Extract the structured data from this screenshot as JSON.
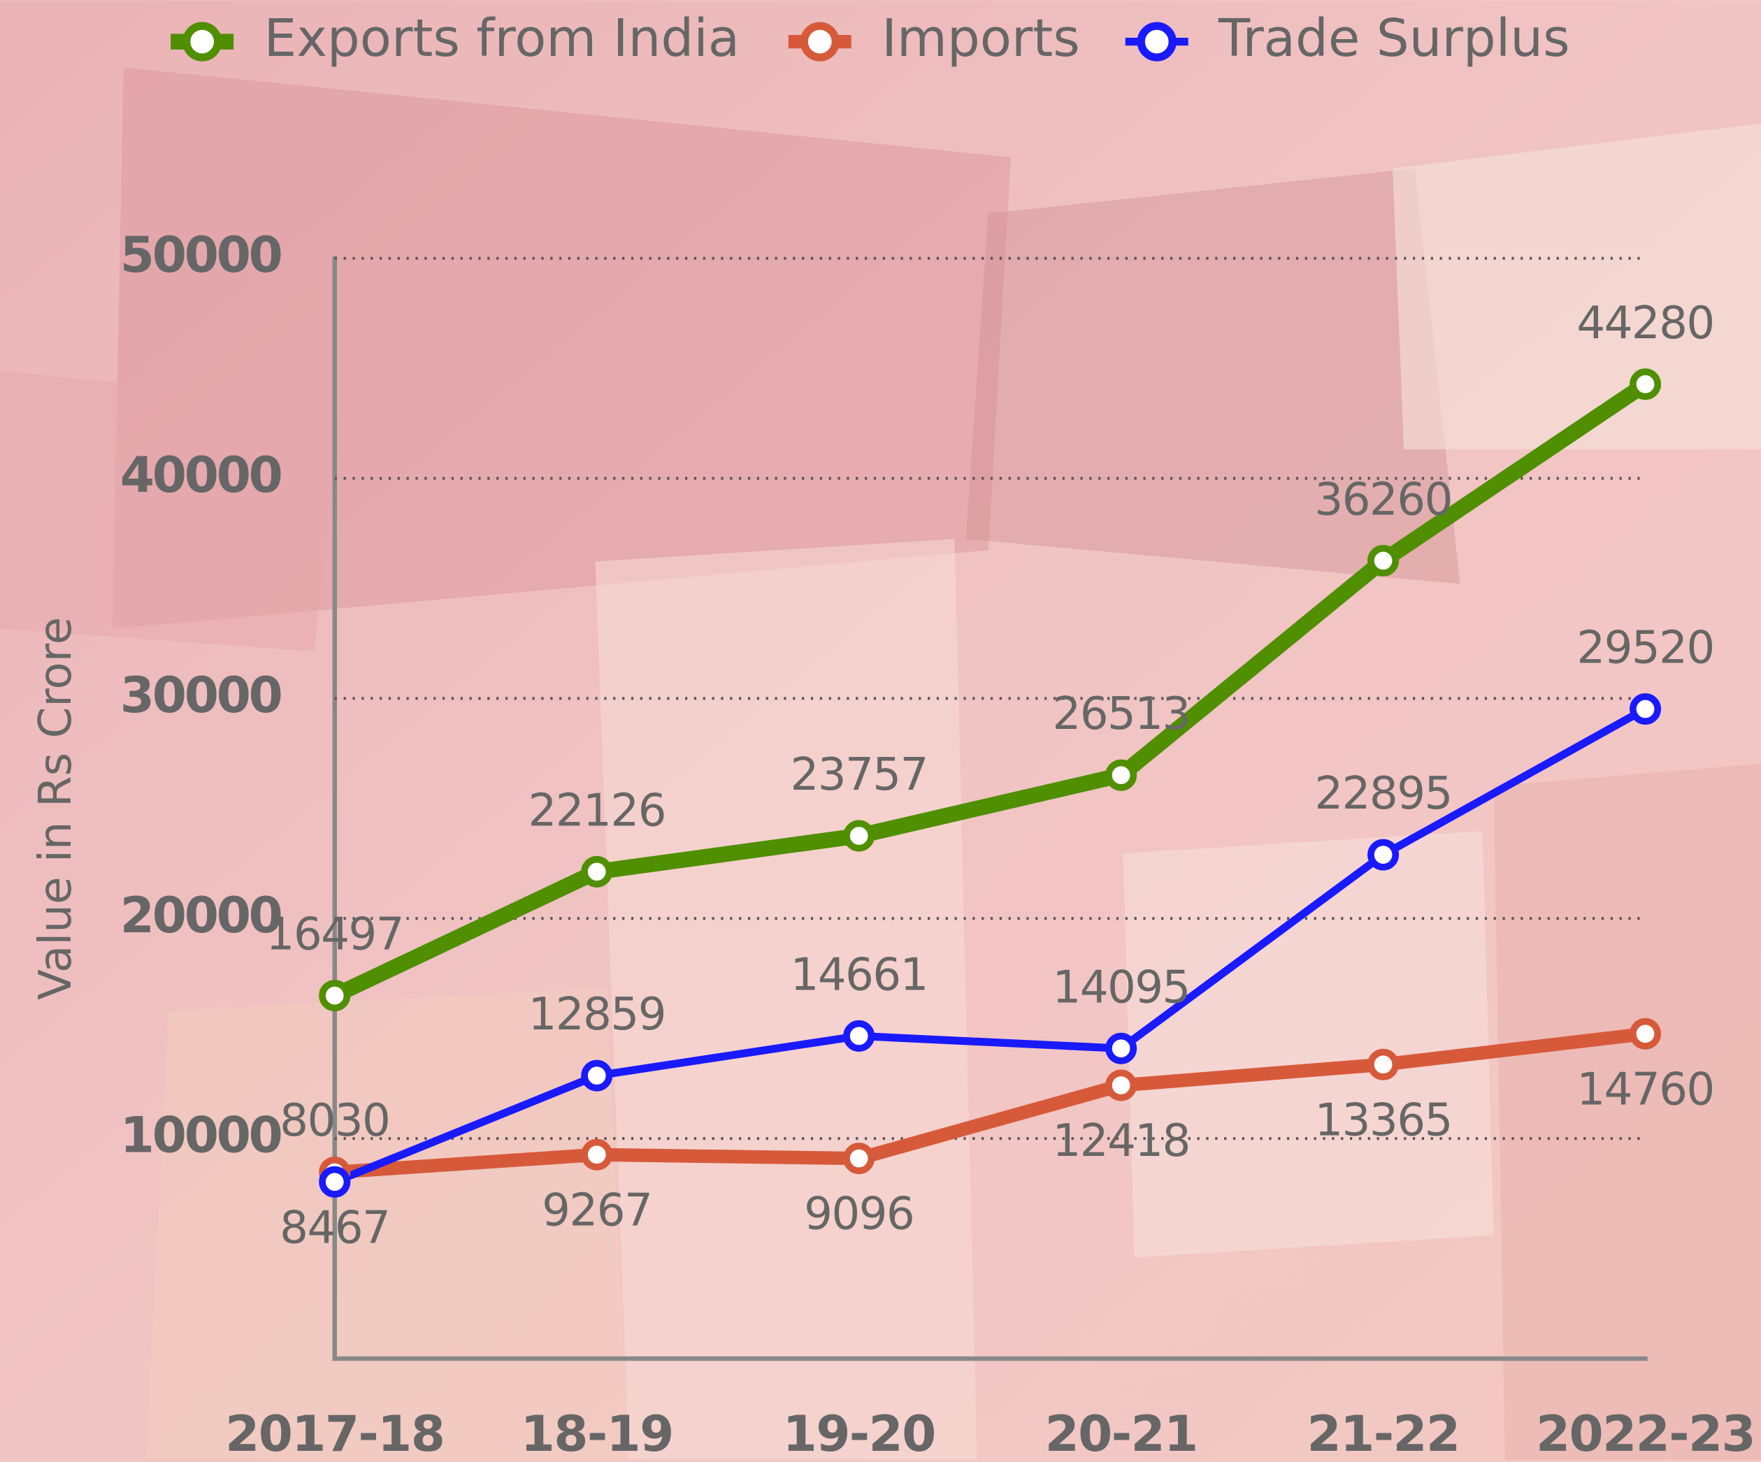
{
  "chart_data": {
    "type": "line",
    "y_label": "Value in Rs Crore",
    "categories": [
      "2017-18",
      "18-19",
      "19-20",
      "20-21",
      "21-22",
      "2022-23"
    ],
    "series": [
      {
        "name": "Exports from India",
        "color": "#4f8f00",
        "values": [
          16497,
          22126,
          23757,
          26513,
          36260,
          44280
        ]
      },
      {
        "name": "Imports",
        "color": "#d65a3a",
        "values": [
          8467,
          9267,
          9096,
          12418,
          13365,
          14760
        ]
      },
      {
        "name": "Trade Surplus",
        "color": "#1a1aff",
        "values": [
          8030,
          12859,
          14661,
          14095,
          22895,
          29520
        ]
      }
    ],
    "ylim": [
      0,
      50000
    ],
    "yticks": [
      10000,
      20000,
      30000,
      40000,
      50000
    ],
    "grid": true
  }
}
